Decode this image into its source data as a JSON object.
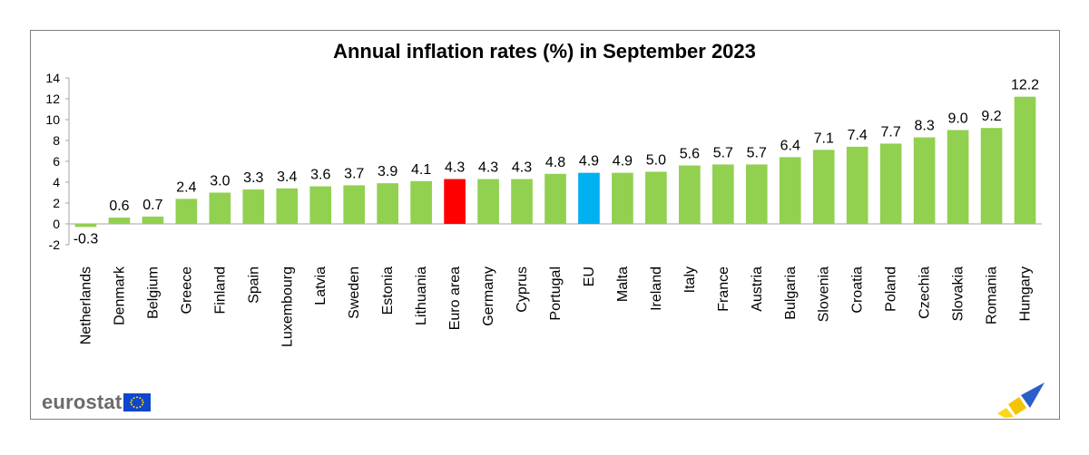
{
  "brand": {
    "name": "eurostat"
  },
  "colors": {
    "default_bar": "#92d050",
    "euro_area_bar": "#ff0000",
    "eu_bar": "#00b0f0",
    "axis": "#a6a6a6"
  },
  "chart_data": {
    "type": "bar",
    "title": "Annual inflation rates (%)  in September 2023",
    "xlabel": "",
    "ylabel": "",
    "ylim": [
      -2,
      14
    ],
    "yticks": [
      -2,
      0,
      2,
      4,
      6,
      8,
      10,
      12,
      14
    ],
    "grid": false,
    "categories": [
      "Netherlands",
      "Denmark",
      "Belgium",
      "Greece",
      "Finland",
      "Spain",
      "Luxembourg",
      "Latvia",
      "Sweden",
      "Estonia",
      "Lithuania",
      "Euro area",
      "Germany",
      "Cyprus",
      "Portugal",
      "EU",
      "Malta",
      "Ireland",
      "Italy",
      "France",
      "Austria",
      "Bulgaria",
      "Slovenia",
      "Croatia",
      "Poland",
      "Czechia",
      "Slovakia",
      "Romania",
      "Hungary"
    ],
    "values": [
      -0.3,
      0.6,
      0.7,
      2.4,
      3.0,
      3.3,
      3.4,
      3.6,
      3.7,
      3.9,
      4.1,
      4.3,
      4.3,
      4.3,
      4.8,
      4.9,
      4.9,
      5.0,
      5.6,
      5.7,
      5.7,
      6.4,
      7.1,
      7.4,
      7.7,
      8.3,
      9.0,
      9.2,
      12.2
    ],
    "value_labels": [
      "-0.3",
      "0.6",
      "0.7",
      "2.4",
      "3.0",
      "3.3",
      "3.4",
      "3.6",
      "3.7",
      "3.9",
      "4.1",
      "4.3",
      "4.3",
      "4.3",
      "4.8",
      "4.9",
      "4.9",
      "5.0",
      "5.6",
      "5.7",
      "5.7",
      "6.4",
      "7.1",
      "7.4",
      "7.7",
      "8.3",
      "9.0",
      "9.2",
      "12.2"
    ],
    "highlights": {
      "Euro area": "#ff0000",
      "EU": "#00b0f0"
    }
  }
}
